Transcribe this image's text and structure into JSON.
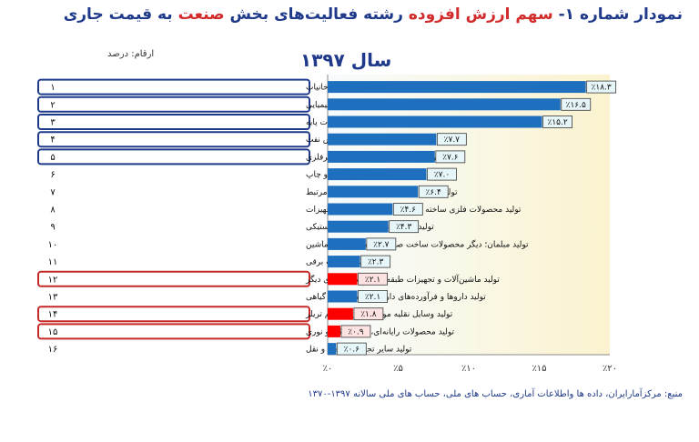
{
  "title": {
    "part1": "نمودار شماره ۱- ",
    "part2": "سهم ارزش افزوده",
    "part3": " رشته فعالیت‌های بخش ",
    "part4": "صنعت",
    "part5": " به قیمت جاری"
  },
  "units_label": "ارقام: درصد",
  "source": "منبع: مرکزآمارایران، داده ها واطلاعات آماری، حساب های ملی، حساب های ملی سالانه ۱۳۹۷-۱۳۷۰",
  "colors": {
    "blue": "#1e6fbd",
    "red": "#ff0000",
    "navy_box": "#1f3a8a",
    "red_box": "#c62828",
    "label_bg_blue": "#e6f6f9",
    "label_bg_red": "#fde2e2"
  },
  "chart_data": {
    "type": "bar",
    "title": "سال ۱۳۹۷",
    "xlim": [
      0,
      20
    ],
    "xticks": [
      "٪۰",
      "٪۵",
      "٪۱۰",
      "٪۱۵",
      "٪۲۰"
    ],
    "grid": false,
    "rows": [
      {
        "rank": "۱",
        "label": "تولید مواد غذایی، آشامیدنی ها و دخانیات",
        "value": 18.3,
        "value_label": "٪۱۸.۳",
        "color": "blue",
        "box": "navy"
      },
      {
        "rank": "۲",
        "label": "تولید مواد شیمیایی و فرآورده‌های شیمیایی",
        "value": 16.5,
        "value_label": "٪۱۶.۵",
        "color": "blue",
        "box": "navy"
      },
      {
        "rank": "۳",
        "label": "تولید فلزات پایه",
        "value": 15.2,
        "value_label": "٪۱۵.۲",
        "color": "blue",
        "box": "navy"
      },
      {
        "rank": "۴",
        "label": "تولید کک، فرآورده‌های حاصل از پالایش نفت",
        "value": 7.7,
        "value_label": "٪۷.۷",
        "color": "blue",
        "box": "navy"
      },
      {
        "rank": "۵",
        "label": "تولید سایر فرآورده‌های معدنی غیرفلزی",
        "value": 7.6,
        "value_label": "٪۷.۶",
        "color": "blue",
        "box": "navy"
      },
      {
        "rank": "۶",
        "label": "تولید محصولات چوب و کاغذ و چاپ",
        "value": 7.0,
        "value_label": "٪۷.۰",
        "color": "blue",
        "box": "none"
      },
      {
        "rank": "۷",
        "label": "تولید پارچه، پوشاک، چرم و محصولات مرتبط",
        "value": 6.4,
        "value_label": "٪۶.۴",
        "color": "blue",
        "box": "none"
      },
      {
        "rank": "۸",
        "label": "تولید محصولات فلزی ساخته شده، به جز ماشین‌آلات و تجهیزات",
        "value": 4.6,
        "value_label": "٪۴.۶",
        "color": "blue",
        "box": "none"
      },
      {
        "rank": "۹",
        "label": "تولید فرآورده‌های لاستیکی و پلاستیکی",
        "value": 4.3,
        "value_label": "٪۴.۳",
        "color": "blue",
        "box": "none"
      },
      {
        "rank": "۱۰",
        "label": "تولید مبلمان؛ دیگر محصولات ساخت صنعتی؛ تعمیر و نصب ماشین",
        "value": 2.7,
        "value_label": "٪۲.۷",
        "color": "blue",
        "box": "none"
      },
      {
        "rank": "۱۱",
        "label": "تولید تجهیزات برقی",
        "value": 2.3,
        "value_label": "٪۲.۳",
        "color": "blue",
        "box": "none"
      },
      {
        "rank": "۱۲",
        "label": "تولید ماشین‌آلات و تجهیزات طبقه‌بندی نشده در جای دیگر",
        "value": 2.1,
        "value_label": "٪۲.۱",
        "color": "red",
        "box": "red"
      },
      {
        "rank": "۱۳",
        "label": "تولید داروها و فرآورده‌های دارویی و شیمیایی و گیاهی",
        "value": 2.1,
        "value_label": "٪۲.۱",
        "color": "blue",
        "box": "none"
      },
      {
        "rank": "۱۴",
        "label": "تولید وسایل نقلیه موتوری، تریلر و نیم تریلر",
        "value": 1.8,
        "value_label": "٪۱.۸",
        "color": "red",
        "box": "red"
      },
      {
        "rank": "۱۵",
        "label": "تولید محصولات رایانه‌ای، الکترونیکی و نوری",
        "value": 0.9,
        "value_label": "٪۰.۹",
        "color": "red",
        "box": "red"
      },
      {
        "rank": "۱۶",
        "label": "تولید سایر تجهیزات حمل و نقل",
        "value": 0.6,
        "value_label": "٪۰.۶",
        "color": "blue",
        "box": "none"
      }
    ]
  }
}
